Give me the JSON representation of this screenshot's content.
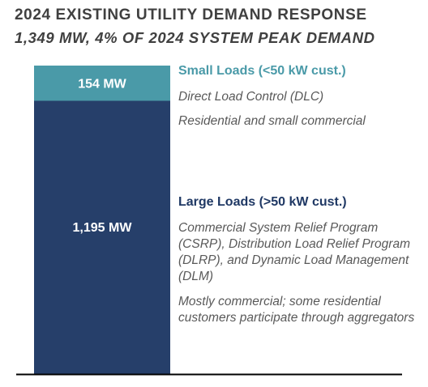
{
  "header": {
    "title": "2024 EXISTING UTILITY DEMAND RESPONSE",
    "subtitle": "1,349 MW, 4% OF 2024 SYSTEM PEAK DEMAND"
  },
  "chart_data": {
    "type": "bar",
    "stacked": true,
    "title": "2024 EXISTING UTILITY DEMAND RESPONSE",
    "subtitle": "1,349 MW, 4% OF 2024 SYSTEM PEAK DEMAND",
    "total": 1349,
    "series": [
      {
        "name": "Small Loads (<50 kW cust.)",
        "value": 154,
        "label": "154 MW",
        "color": "#4a9aa8"
      },
      {
        "name": "Large Loads (>50 kW cust.)",
        "value": 1195,
        "label": "1,195 MW",
        "color": "#263f6a"
      }
    ]
  },
  "annotations": {
    "small": {
      "heading": "Small Loads (<50 kW cust.)",
      "programs": "Direct Load Control (DLC)",
      "customers": "Residential and small commercial"
    },
    "large": {
      "heading": "Large Loads (>50 kW cust.)",
      "programs": "Commercial System Relief Program (CSRP), Distribution Load Relief Program (DLRP), and Dynamic Load Management (DLM)",
      "customers": "Mostly commercial; some residential customers participate through aggregators"
    }
  },
  "colors": {
    "small": "#4a9aa8",
    "large": "#263f6a",
    "text": "#404040",
    "muted": "#595959",
    "baseline": "#000000"
  }
}
